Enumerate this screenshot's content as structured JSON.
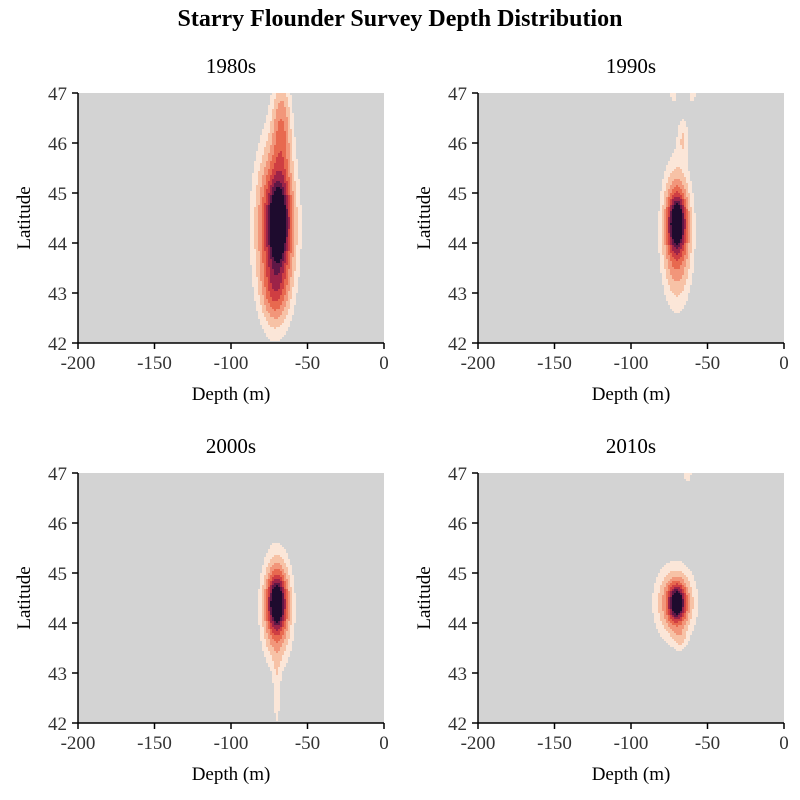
{
  "title": "Starry Flounder Survey Depth Distribution",
  "colors": {
    "background": "#d3d3d3",
    "ramp": [
      "#fbe6d8",
      "#f7c2a6",
      "#f2967a",
      "#e8694f",
      "#cf3e42",
      "#9c2348",
      "#5e1746",
      "#1e0b2e"
    ]
  },
  "chart_data": [
    {
      "type": "heatmap",
      "title": "1980s",
      "xlabel": "Depth (m)",
      "ylabel": "Latitude",
      "xlim": [
        -200,
        0
      ],
      "ylim": [
        42,
        47
      ],
      "xticks": [
        -200,
        -150,
        -100,
        -50,
        0
      ],
      "yticks": [
        42,
        43,
        44,
        45,
        46,
        47
      ],
      "density_components": [
        {
          "x": -69,
          "y": 44.4,
          "sx": 4.5,
          "sy": 0.55,
          "weight": 1.0
        },
        {
          "x": -71,
          "y": 44.3,
          "sx": 8,
          "sy": 1.05,
          "weight": 0.55
        },
        {
          "x": -67,
          "y": 46.2,
          "sx": 4,
          "sy": 0.7,
          "weight": 0.3
        },
        {
          "x": -71,
          "y": 43.1,
          "sx": 5,
          "sy": 0.4,
          "weight": 0.3
        }
      ]
    },
    {
      "type": "heatmap",
      "title": "1990s",
      "xlabel": "Depth (m)",
      "ylabel": "Latitude",
      "xlim": [
        -200,
        0
      ],
      "ylim": [
        42,
        47
      ],
      "xticks": [
        -200,
        -150,
        -100,
        -50,
        0
      ],
      "yticks": [
        42,
        43,
        44,
        45,
        46,
        47
      ],
      "density_components": [
        {
          "x": -70,
          "y": 44.4,
          "sx": 3.5,
          "sy": 0.35,
          "weight": 1.0
        },
        {
          "x": -70,
          "y": 44.2,
          "sx": 6,
          "sy": 0.8,
          "weight": 0.45
        },
        {
          "x": -66,
          "y": 46.1,
          "sx": 2.5,
          "sy": 0.3,
          "weight": 0.12
        },
        {
          "x": -72,
          "y": 47.0,
          "sx": 2,
          "sy": 0.15,
          "weight": 0.1
        },
        {
          "x": -60,
          "y": 47.0,
          "sx": 2,
          "sy": 0.15,
          "weight": 0.1
        }
      ]
    },
    {
      "type": "heatmap",
      "title": "2000s",
      "xlabel": "Depth (m)",
      "ylabel": "Latitude",
      "xlim": [
        -200,
        0
      ],
      "ylim": [
        42,
        47
      ],
      "xticks": [
        -200,
        -150,
        -100,
        -50,
        0
      ],
      "yticks": [
        42,
        43,
        44,
        45,
        46,
        47
      ],
      "density_components": [
        {
          "x": -70,
          "y": 44.4,
          "sx": 3.5,
          "sy": 0.32,
          "weight": 1.0
        },
        {
          "x": -70,
          "y": 44.3,
          "sx": 6,
          "sy": 0.65,
          "weight": 0.45
        },
        {
          "x": -70,
          "y": 42.6,
          "sx": 1.8,
          "sy": 0.6,
          "weight": 0.09
        }
      ]
    },
    {
      "type": "heatmap",
      "title": "2010s",
      "xlabel": "Depth (m)",
      "ylabel": "Latitude",
      "xlim": [
        -200,
        0
      ],
      "ylim": [
        42,
        47
      ],
      "xticks": [
        -200,
        -150,
        -100,
        -50,
        0
      ],
      "yticks": [
        42,
        43,
        44,
        45,
        46,
        47
      ],
      "density_components": [
        {
          "x": -70,
          "y": 44.4,
          "sx": 3.5,
          "sy": 0.22,
          "weight": 1.0
        },
        {
          "x": -71,
          "y": 44.4,
          "sx": 8,
          "sy": 0.45,
          "weight": 0.35
        },
        {
          "x": -68,
          "y": 43.7,
          "sx": 3,
          "sy": 0.15,
          "weight": 0.1
        },
        {
          "x": -63,
          "y": 47.0,
          "sx": 2,
          "sy": 0.15,
          "weight": 0.12
        }
      ]
    }
  ]
}
